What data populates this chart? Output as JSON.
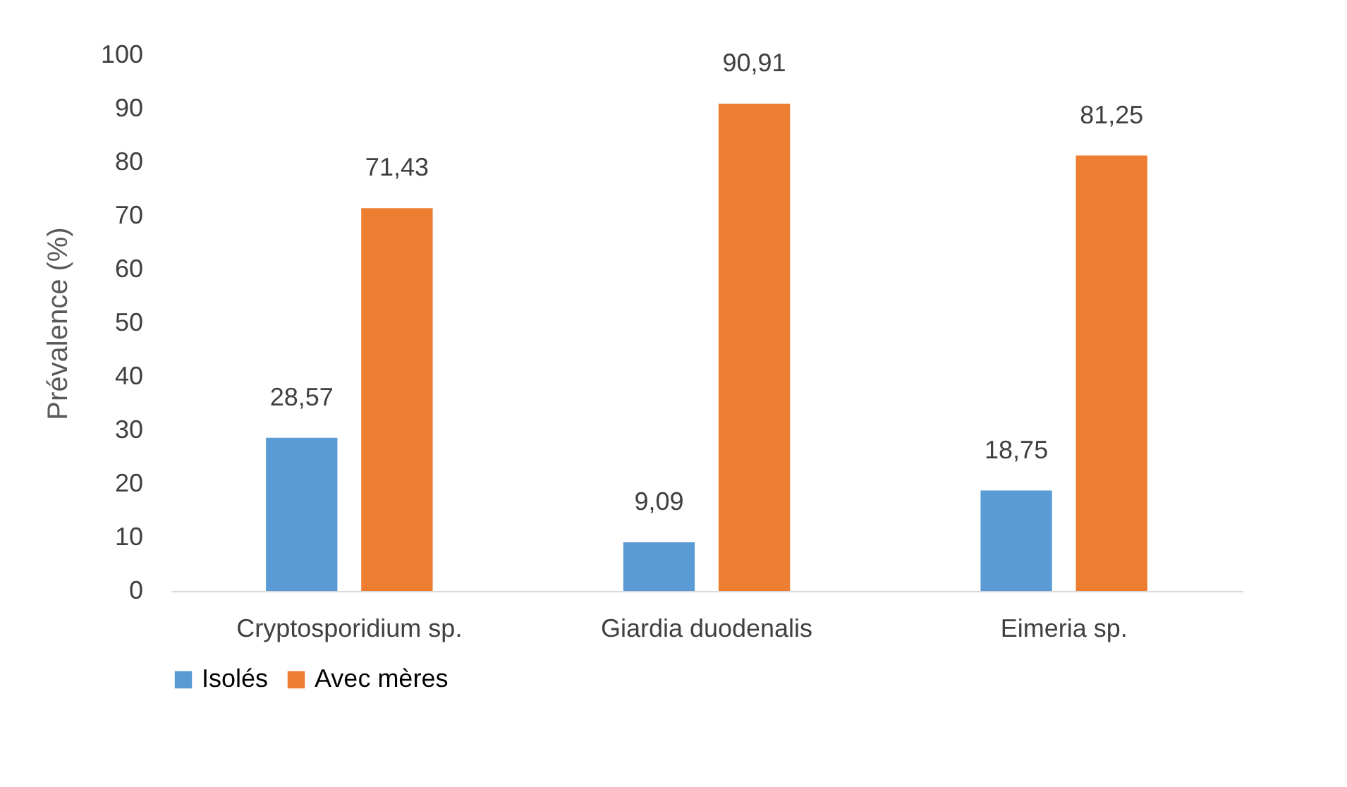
{
  "chart_data": {
    "type": "bar",
    "ylabel": "Prévalence (%)",
    "categories": [
      "Cryptosporidium sp.",
      "Giardia duodenalis",
      "Eimeria sp."
    ],
    "series": [
      {
        "name": "Isolés",
        "color": "#5b9bd5",
        "values": [
          28.57,
          9.09,
          18.75
        ],
        "value_labels": [
          "28,57",
          "9,09",
          "18,75"
        ]
      },
      {
        "name": "Avec mères",
        "color": "#ed7d31",
        "values": [
          71.43,
          90.91,
          81.25
        ],
        "value_labels": [
          "71,43",
          "90,91",
          "81,25"
        ]
      }
    ],
    "ylim": [
      0,
      100
    ],
    "yticks": [
      0,
      10,
      20,
      30,
      40,
      50,
      60,
      70,
      80,
      90,
      100
    ],
    "grid": false,
    "legend": "bottom"
  }
}
